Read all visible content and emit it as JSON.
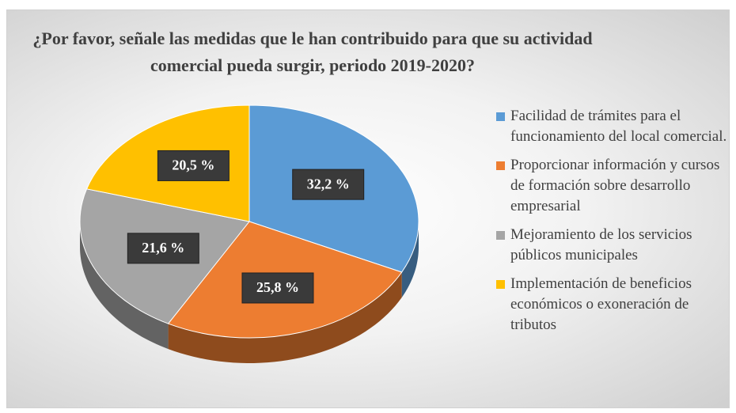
{
  "chart_data": {
    "type": "pie3d",
    "title": "¿Por favor, señale las medidas que le han contribuido para que su actividad comercial pueda surgir, periodo 2019-2020?",
    "categories": [
      "Facilidad de trámites para el funcionamiento del local comercial.",
      "Proporcionar información y cursos de formación sobre desarrollo empresarial",
      "Mejoramiento de los servicios públicos municipales",
      "Implementación de beneficios económicos o exoneración de tributos"
    ],
    "values": [
      32.2,
      25.8,
      21.6,
      20.5
    ],
    "value_labels": [
      "32,2 %",
      "25,8 %",
      "21,6 %",
      "20,5 %"
    ],
    "colors": [
      "#5b9bd5",
      "#ed7d31",
      "#a5a5a5",
      "#ffc000"
    ],
    "legend": "right"
  }
}
